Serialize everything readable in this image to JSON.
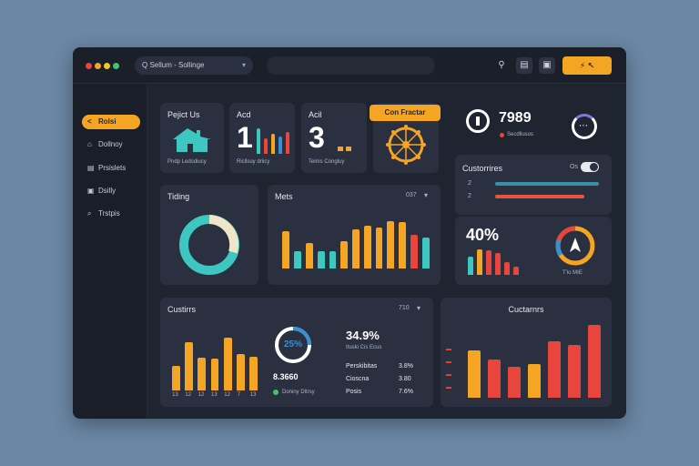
{
  "colors": {
    "accent": "#f5a524",
    "teal": "#3ec6c0",
    "red": "#e8453c",
    "blue": "#3a8fd0",
    "panel": "#2a3040"
  },
  "titlebar": {
    "search_value": "Q Sellum - Sollinge",
    "chevron_icon": "chevron-down-icon",
    "button_label": "⚡ ↖"
  },
  "sidebar": {
    "items": [
      {
        "label": "Rolsi",
        "icon": "<"
      },
      {
        "label": "Dollnoy",
        "icon": "⌂"
      },
      {
        "label": "Prsislets",
        "icon": "▤"
      },
      {
        "label": "Dsilly",
        "icon": "▣"
      },
      {
        "label": "Trstpis",
        "icon": "⌕"
      }
    ]
  },
  "cards": {
    "project": {
      "title": "Pejict Us",
      "caption": "Pndp Ledsdiucy"
    },
    "acd": {
      "title": "Acd",
      "big": "1",
      "caption": "Ricllsuy driicy"
    },
    "acl": {
      "title": "Acil",
      "big": "3",
      "caption": "Teims Congluy"
    },
    "con": {
      "badge": "Con Fractar"
    },
    "stat": {
      "value": "7989",
      "caption": "Secdllusos"
    },
    "customers_top": {
      "title": "Custorrires",
      "toggle_label": "Os",
      "rows": [
        "2",
        "2"
      ]
    },
    "percent": {
      "value": "40%",
      "caption": "T'io MIE"
    },
    "trading": {
      "title": "Tiding"
    },
    "mets": {
      "title": "Mets",
      "menu": "037"
    },
    "customers_bottom": {
      "title": "Custirrs",
      "menu": "710",
      "ring_label": "25%",
      "side_value": "34.9%",
      "side_caption": "Ituski Cis Ecus",
      "left_value": "8.3660",
      "left_caption": "Doniny Dltrsy",
      "rows": [
        {
          "label": "Perskibitas",
          "value": "3.8%"
        },
        {
          "label": "Cioscna",
          "value": "3.80"
        },
        {
          "label": "Posis",
          "value": "7.6%"
        }
      ],
      "xlabels": [
        "13",
        "12",
        "12",
        "13",
        "12",
        "7",
        "13"
      ]
    },
    "customers_right": {
      "title": "Cuctarnrs"
    }
  },
  "chart_data": [
    {
      "type": "bar",
      "name": "mets",
      "values": [
        35,
        16,
        24,
        16,
        16,
        25,
        36,
        40,
        38,
        44,
        43,
        31,
        29
      ],
      "colors": [
        "#f5a524",
        "#3ec6c0",
        "#f5a524",
        "#3ec6c0",
        "#3ec6c0",
        "#f5a524",
        "#f5a524",
        "#f5a524",
        "#f5a524",
        "#f5a524",
        "#f5a524",
        "#e8453c",
        "#3ec6c0"
      ]
    },
    {
      "type": "bar",
      "name": "customers-bottom",
      "values": [
        27,
        52,
        35,
        34,
        57,
        39,
        36
      ],
      "colors": [
        "#f5a524",
        "#f5a524",
        "#f5a524",
        "#f5a524",
        "#f5a524",
        "#f5a524",
        "#f5a524"
      ]
    },
    {
      "type": "bar",
      "name": "customers-right",
      "values": [
        51,
        41,
        33,
        36,
        60,
        57,
        78
      ],
      "colors": [
        "#f5a524",
        "#e8453c",
        "#e8453c",
        "#f5a524",
        "#e8453c",
        "#e8453c",
        "#e8453c"
      ]
    },
    {
      "type": "bar",
      "name": "percent-mini",
      "values": [
        20,
        28,
        27,
        24,
        14,
        9
      ],
      "colors": [
        "#3ec6c0",
        "#f5a524",
        "#e8453c",
        "#e8453c",
        "#e8453c",
        "#e8453c"
      ]
    },
    {
      "type": "bar",
      "name": "acd-mini",
      "values": [
        30,
        18,
        24,
        20,
        26
      ],
      "colors": [
        "#3ec6c0",
        "#e8453c",
        "#f5a524",
        "#3a8fd0",
        "#e8453c"
      ]
    }
  ]
}
